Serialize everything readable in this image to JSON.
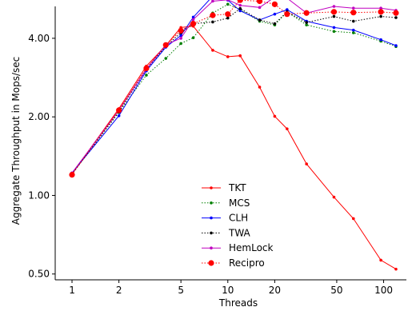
{
  "chart_data": {
    "type": "line",
    "title": "",
    "xlabel": "Threads",
    "ylabel": "Aggregate Throughput in Mops/sec",
    "x_scale": "log",
    "y_scale": "log",
    "xlim": [
      0.78,
      140
    ],
    "ylim": [
      0.475,
      5.3
    ],
    "xticks": [
      1,
      2,
      5,
      10,
      20,
      50,
      100
    ],
    "xtick_labels": [
      "1",
      "2",
      "5",
      "10",
      "20",
      "50",
      "100"
    ],
    "yticks": [
      0.5,
      1.0,
      2.0,
      4.0
    ],
    "ytick_labels": [
      "0.50",
      "1.00",
      "2.00",
      "4.00"
    ],
    "grid": false,
    "legend_position": "lower-center",
    "series": [
      {
        "name": "TKT",
        "color": "#ff0000",
        "linestyle": "solid",
        "marker": "dot-small",
        "x": [
          1,
          2,
          3,
          4,
          5,
          6,
          8,
          10,
          12,
          16,
          20,
          24,
          32,
          48,
          64,
          96,
          120
        ],
        "y": [
          1.21,
          2.15,
          3.13,
          3.75,
          4.4,
          4.45,
          3.6,
          3.4,
          3.43,
          2.6,
          2.01,
          1.8,
          1.32,
          0.985,
          0.815,
          0.565,
          0.522
        ]
      },
      {
        "name": "MCS",
        "color": "#008000",
        "linestyle": "dotted",
        "marker": "dot-small",
        "x": [
          1,
          2,
          3,
          4,
          5,
          6,
          8,
          10,
          12,
          16,
          20,
          24,
          32,
          48,
          64,
          96,
          120
        ],
        "y": [
          1.21,
          2.08,
          2.89,
          3.35,
          3.82,
          4.02,
          5.0,
          5.4,
          5.15,
          4.65,
          4.5,
          5.05,
          4.5,
          4.25,
          4.2,
          3.9,
          3.72
        ]
      },
      {
        "name": "CLH",
        "color": "#0000ff",
        "linestyle": "solid",
        "marker": "dot-small",
        "x": [
          1,
          2,
          3,
          4,
          5,
          6,
          8,
          10,
          12,
          16,
          20,
          24,
          32,
          48,
          64,
          96,
          120
        ],
        "y": [
          1.22,
          2.02,
          3.0,
          3.7,
          4.1,
          4.82,
          5.8,
          5.6,
          5.1,
          4.7,
          4.95,
          5.15,
          4.65,
          4.4,
          4.3,
          3.95,
          3.75
        ]
      },
      {
        "name": "TWA",
        "color": "#000000",
        "linestyle": "dotted",
        "marker": "dot-small",
        "x": [
          1,
          2,
          3,
          4,
          5,
          6,
          8,
          10,
          12,
          16,
          20,
          24,
          32,
          48,
          64,
          96,
          120
        ],
        "y": [
          1.21,
          2.09,
          3.04,
          3.73,
          4.2,
          4.55,
          4.62,
          4.78,
          5.2,
          4.7,
          4.55,
          5.05,
          4.6,
          4.85,
          4.65,
          4.85,
          4.8
        ]
      },
      {
        "name": "HemLock",
        "color": "#c000c0",
        "linestyle": "solid",
        "marker": "dot-small",
        "x": [
          1,
          2,
          3,
          4,
          5,
          6,
          8,
          10,
          12,
          16,
          20,
          24,
          32,
          48,
          64,
          96,
          120
        ],
        "y": [
          1.22,
          2.12,
          3.05,
          3.78,
          4.0,
          4.72,
          5.55,
          5.62,
          5.35,
          5.25,
          5.75,
          5.7,
          5.0,
          5.3,
          5.22,
          5.22,
          5.12
        ]
      },
      {
        "name": "Recipro",
        "color": "#ff0000",
        "linestyle": "dotted",
        "marker": "dot-large",
        "x": [
          1,
          2,
          3,
          4,
          5,
          6,
          8,
          10,
          12,
          16,
          20,
          24,
          32,
          48,
          64,
          96,
          120
        ],
        "y": [
          1.2,
          2.12,
          3.07,
          3.77,
          4.28,
          4.55,
          4.9,
          4.95,
          5.6,
          5.55,
          5.4,
          4.95,
          5.0,
          5.05,
          5.02,
          5.05,
          5.0
        ]
      }
    ]
  }
}
